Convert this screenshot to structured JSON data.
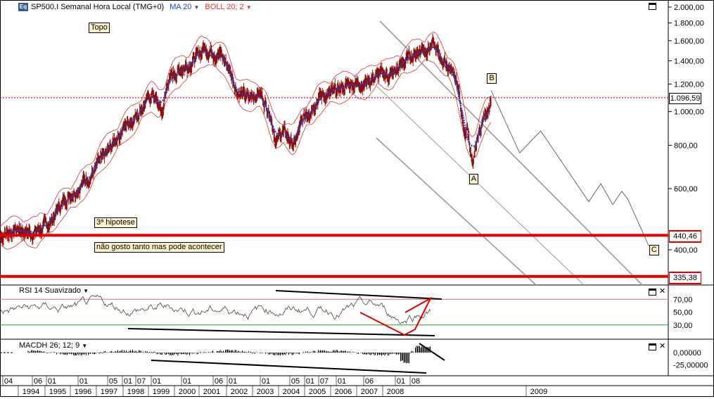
{
  "header": {
    "logo": "Eq",
    "symbol": "SP500.I Semanal Hora Local (TMG+0)",
    "ma_label": "MA 20",
    "boll_label": "BOLL 20; 2"
  },
  "colors": {
    "price": "#8a1010",
    "ma": "#1f3fd0",
    "boll": "#e03030",
    "support": "#e00000",
    "channel": "#9a9a9a",
    "rsi": "#444444",
    "rsi_upper": "#e07070",
    "rsi_lower": "#22a022",
    "tag_bg": "#fff2cc"
  },
  "chart_data": [
    {
      "type": "line",
      "title": "",
      "series_labels": [
        "MA 20",
        "BOLL 20; 2"
      ],
      "y_scale": "log",
      "y_ticks": [
        "2.000,00",
        "1.800,00",
        "1.600,00",
        "1.400,00",
        "1.200,00",
        "1.000,00",
        "800,00",
        "600,00",
        "400,00"
      ],
      "y_tick_values": [
        2000,
        1800,
        1600,
        1400,
        1200,
        1000,
        800,
        600,
        400
      ],
      "ylim": [
        300,
        2100
      ],
      "last_price_label": "1.096,59",
      "last_price": 1096.59,
      "support_levels": [
        {
          "label": "440,46",
          "value": 440.46
        },
        {
          "label": "335,38",
          "value": 335.38
        }
      ],
      "price_points": [
        {
          "year": 1993.4,
          "close": 440
        },
        {
          "year": 1994.0,
          "close": 460
        },
        {
          "year": 1994.5,
          "close": 450
        },
        {
          "year": 1995.0,
          "close": 470
        },
        {
          "year": 1995.5,
          "close": 550
        },
        {
          "year": 1996.0,
          "close": 610
        },
        {
          "year": 1996.5,
          "close": 670
        },
        {
          "year": 1997.0,
          "close": 760
        },
        {
          "year": 1997.5,
          "close": 900
        },
        {
          "year": 1998.0,
          "close": 1000
        },
        {
          "year": 1998.5,
          "close": 1130
        },
        {
          "year": 1998.8,
          "close": 980
        },
        {
          "year": 1999.0,
          "close": 1230
        },
        {
          "year": 1999.5,
          "close": 1350
        },
        {
          "year": 2000.0,
          "close": 1440
        },
        {
          "year": 2000.2,
          "close": 1530
        },
        {
          "year": 2000.7,
          "close": 1480
        },
        {
          "year": 2001.0,
          "close": 1350
        },
        {
          "year": 2001.3,
          "close": 1150
        },
        {
          "year": 2001.7,
          "close": 1080
        },
        {
          "year": 2002.0,
          "close": 1150
        },
        {
          "year": 2002.4,
          "close": 1000
        },
        {
          "year": 2002.6,
          "close": 820
        },
        {
          "year": 2002.8,
          "close": 880
        },
        {
          "year": 2003.2,
          "close": 800
        },
        {
          "year": 2003.6,
          "close": 990
        },
        {
          "year": 2004.0,
          "close": 1110
        },
        {
          "year": 2004.5,
          "close": 1120
        },
        {
          "year": 2005.0,
          "close": 1200
        },
        {
          "year": 2005.5,
          "close": 1220
        },
        {
          "year": 2006.0,
          "close": 1270
        },
        {
          "year": 2006.5,
          "close": 1280
        },
        {
          "year": 2007.0,
          "close": 1430
        },
        {
          "year": 2007.4,
          "close": 1510
        },
        {
          "year": 2007.8,
          "close": 1560
        },
        {
          "year": 2008.0,
          "close": 1450
        },
        {
          "year": 2008.4,
          "close": 1330
        },
        {
          "year": 2008.6,
          "close": 1250
        },
        {
          "year": 2008.75,
          "close": 1000
        },
        {
          "year": 2008.85,
          "close": 850
        },
        {
          "year": 2008.95,
          "close": 900
        },
        {
          "year": 2009.15,
          "close": 680
        },
        {
          "year": 2009.3,
          "close": 830
        },
        {
          "year": 2009.45,
          "close": 930
        },
        {
          "year": 2009.6,
          "close": 1010
        },
        {
          "year": 2009.75,
          "close": 1096.59
        }
      ],
      "forecast_path": [
        {
          "year": 2009.75,
          "value": 1150
        },
        {
          "year": 2010.7,
          "value": 760
        },
        {
          "year": 2011.4,
          "value": 880
        },
        {
          "year": 2013.0,
          "value": 550
        },
        {
          "year": 2013.4,
          "value": 620
        },
        {
          "year": 2013.8,
          "value": 540
        },
        {
          "year": 2014.1,
          "value": 590
        },
        {
          "year": 2014.3,
          "value": 560
        },
        {
          "year": 2015.0,
          "value": 410
        }
      ],
      "annotations": [
        {
          "label": "Topo",
          "year": 2007.8,
          "value": 1750
        },
        {
          "label": "B",
          "year": 2009.8,
          "value": 1250
        },
        {
          "label": "A",
          "year": 2009.2,
          "value": 640
        },
        {
          "label": "C",
          "year": 2015.2,
          "value": 400
        },
        {
          "label": "3ª hipotese",
          "year": 1996.5,
          "value": 480
        },
        {
          "label": "não gosto tanto mas pode acontecer",
          "year": 1996.5,
          "value": 408
        }
      ]
    },
    {
      "type": "line",
      "title": "RSI 14 Suavizado",
      "y_ticks": [
        "70,00",
        "50,00",
        "30,00"
      ],
      "y_tick_values": [
        70,
        50,
        30
      ],
      "ylim": [
        10,
        90
      ],
      "upper_level": 70,
      "lower_level": 30
    },
    {
      "type": "bar",
      "title": "MACDH 26; 12; 9",
      "y_ticks": [
        "0,00000",
        "-25,00000"
      ],
      "y_tick_values": [
        0,
        -25
      ],
      "ylim": [
        -45,
        25
      ]
    }
  ],
  "x_axis": {
    "top_labels": [
      "04",
      "06",
      "01",
      "01",
      "05",
      "01",
      "07",
      "01",
      "01",
      "06",
      "01",
      "01",
      "05",
      "01",
      "07",
      "01",
      "06",
      "01",
      "08"
    ],
    "bottom_labels": [
      "1994",
      "1995",
      "1996",
      "1997",
      "1998",
      "1999",
      "2000",
      "2001",
      "2002",
      "2003",
      "2004",
      "2005",
      "2006",
      "2007",
      "2008",
      "2009"
    ]
  }
}
